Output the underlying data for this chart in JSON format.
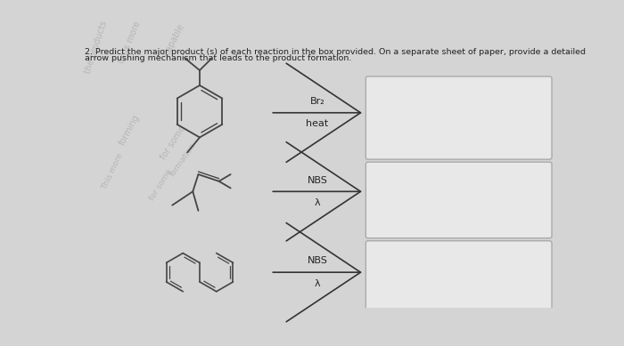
{
  "title_line1": "2. Predict the major product (s) of each reaction in the box provided. On a separate sheet of paper, provide a detailed",
  "title_line2": "arrow pushing mechanism that leads to the product formation.",
  "bg_color": "#d4d4d4",
  "box_color": "#e8e8e8",
  "box_edge_color": "#aaaaaa",
  "text_color": "#222222",
  "arrow_color": "#333333",
  "reactions": [
    {
      "reagent_line1": "Br₂",
      "reagent_line2": "heat"
    },
    {
      "reagent_line1": "NBS",
      "reagent_line2": "λ"
    },
    {
      "reagent_line1": "NBS",
      "reagent_line2": "λ"
    }
  ]
}
